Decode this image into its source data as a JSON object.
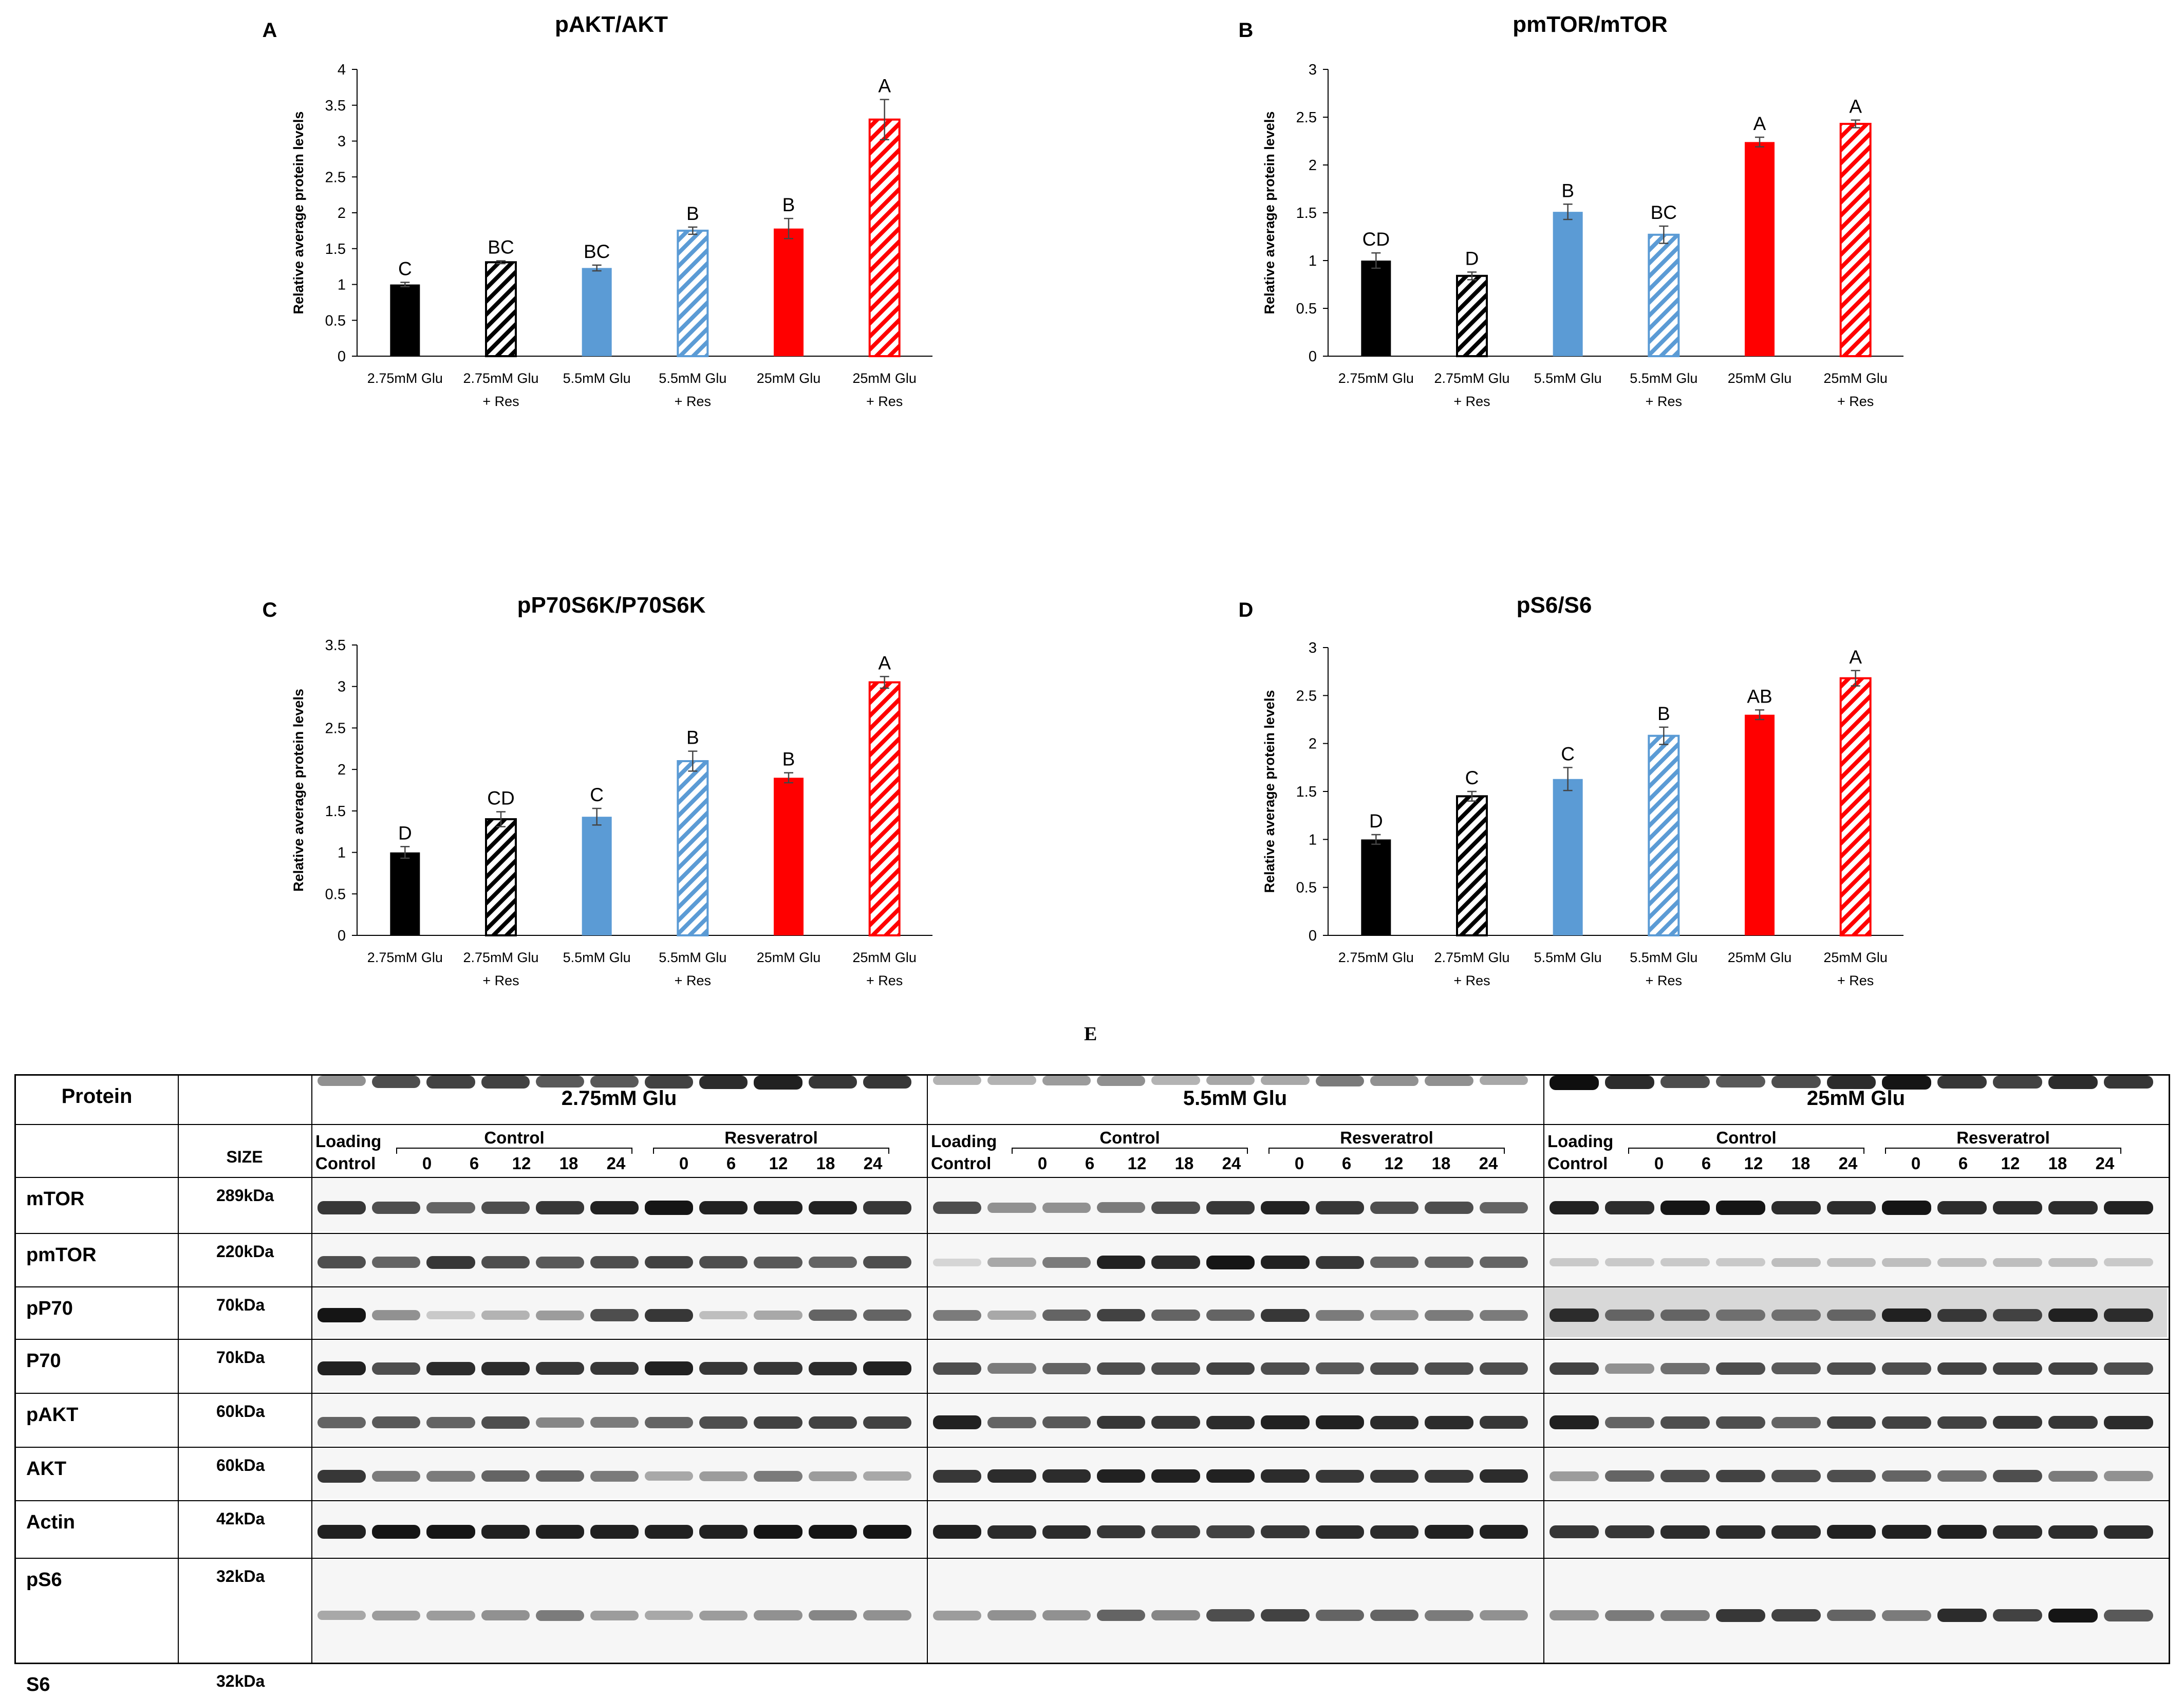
{
  "colors": {
    "black": "#000000",
    "blue": "#5B9BD5",
    "red": "#FF0000",
    "axis": "#000000"
  },
  "chart_data": [
    {
      "letter": "A",
      "type": "bar",
      "title": "pAKT/AKT",
      "ylabel": "Relative average protein levels",
      "ylim": [
        0,
        4
      ],
      "yticks": [
        "0",
        "0.5",
        "1",
        "1.5",
        "2",
        "2.5",
        "3",
        "3.5",
        "4"
      ],
      "categories": [
        [
          "2.75mM Glu",
          ""
        ],
        [
          "2.75mM Glu",
          "+ Res"
        ],
        [
          "5.5mM Glu",
          ""
        ],
        [
          "5.5mM Glu",
          "+ Res"
        ],
        [
          "25mM Glu",
          ""
        ],
        [
          "25mM Glu",
          "+ Res"
        ]
      ],
      "values": [
        1.0,
        1.31,
        1.23,
        1.75,
        1.78,
        3.3
      ],
      "errors": [
        0.03,
        0.02,
        0.04,
        0.05,
        0.14,
        0.28
      ],
      "labels": [
        "C",
        "BC",
        "BC",
        "B",
        "B",
        "A"
      ],
      "fills": [
        "black",
        "black",
        "blue",
        "blue",
        "red",
        "red"
      ],
      "hatched": [
        false,
        true,
        false,
        true,
        false,
        true
      ]
    },
    {
      "letter": "B",
      "type": "bar",
      "title": "pmTOR/mTOR",
      "ylabel": "Relative average protein levels",
      "ylim": [
        0,
        3
      ],
      "yticks": [
        "0",
        "0.5",
        "1",
        "1.5",
        "2",
        "2.5",
        "3"
      ],
      "categories": [
        [
          "2.75mM Glu",
          ""
        ],
        [
          "2.75mM Glu",
          "+ Res"
        ],
        [
          "5.5mM Glu",
          ""
        ],
        [
          "5.5mM Glu",
          "+ Res"
        ],
        [
          "25mM Glu",
          ""
        ],
        [
          "25mM Glu",
          "+ Res"
        ]
      ],
      "values": [
        1.0,
        0.84,
        1.51,
        1.27,
        2.24,
        2.43
      ],
      "errors": [
        0.08,
        0.04,
        0.08,
        0.09,
        0.05,
        0.04
      ],
      "labels": [
        "CD",
        "D",
        "B",
        "BC",
        "A",
        "A"
      ],
      "fills": [
        "black",
        "black",
        "blue",
        "blue",
        "red",
        "red"
      ],
      "hatched": [
        false,
        true,
        false,
        true,
        false,
        true
      ]
    },
    {
      "letter": "C",
      "type": "bar",
      "title": "pP70S6K/P70S6K",
      "ylabel": "Relative average protein levels",
      "ylim": [
        0,
        3.5
      ],
      "yticks": [
        "0",
        "0.5",
        "1",
        "1.5",
        "2",
        "2.5",
        "3",
        "3.5"
      ],
      "categories": [
        [
          "2.75mM Glu",
          ""
        ],
        [
          "2.75mM Glu",
          "+ Res"
        ],
        [
          "5.5mM Glu",
          ""
        ],
        [
          "5.5mM Glu",
          "+ Res"
        ],
        [
          "25mM Glu",
          ""
        ],
        [
          "25mM Glu",
          "+ Res"
        ]
      ],
      "values": [
        1.0,
        1.4,
        1.43,
        2.1,
        1.9,
        3.05
      ],
      "errors": [
        0.07,
        0.09,
        0.1,
        0.12,
        0.06,
        0.07
      ],
      "labels": [
        "D",
        "CD",
        "C",
        "B",
        "B",
        "A"
      ],
      "fills": [
        "black",
        "black",
        "blue",
        "blue",
        "red",
        "red"
      ],
      "hatched": [
        false,
        true,
        false,
        true,
        false,
        true
      ]
    },
    {
      "letter": "D",
      "type": "bar",
      "title": "pS6/S6",
      "ylabel": "Relative average protein levels",
      "ylim": [
        0,
        3
      ],
      "yticks": [
        "0",
        "0.5",
        "1",
        "1.5",
        "2",
        "2.5",
        "3"
      ],
      "categories": [
        [
          "2.75mM Glu",
          ""
        ],
        [
          "2.75mM Glu",
          "+ Res"
        ],
        [
          "5.5mM Glu",
          ""
        ],
        [
          "5.5mM Glu",
          "+ Res"
        ],
        [
          "25mM Glu",
          ""
        ],
        [
          "25mM Glu",
          "+ Res"
        ]
      ],
      "values": [
        1.0,
        1.45,
        1.63,
        2.08,
        2.3,
        2.68
      ],
      "errors": [
        0.05,
        0.05,
        0.12,
        0.09,
        0.05,
        0.08
      ],
      "labels": [
        "D",
        "C",
        "C",
        "B",
        "AB",
        "A"
      ],
      "fills": [
        "black",
        "black",
        "blue",
        "blue",
        "red",
        "red"
      ],
      "hatched": [
        false,
        true,
        false,
        true,
        false,
        true
      ]
    }
  ],
  "blot": {
    "panel_letter": "E",
    "header_protein": "Protein",
    "header_size": "SIZE",
    "groups": [
      "2.75mM Glu",
      "5.5mM Glu",
      "25mM Glu"
    ],
    "loading_control": [
      "Loading",
      "Control"
    ],
    "control_label": "Control",
    "resveratrol_label": "Resveratrol",
    "timepoints": [
      "0",
      "6",
      "12",
      "18",
      "24"
    ],
    "rows": [
      {
        "protein": "mTOR",
        "size": "289kDa"
      },
      {
        "protein": "pmTOR",
        "size": "220kDa"
      },
      {
        "protein": "pP70",
        "size": "70kDa"
      },
      {
        "protein": "P70",
        "size": "70kDa"
      },
      {
        "protein": "pAKT",
        "size": "60kDa"
      },
      {
        "protein": "AKT",
        "size": "60kDa"
      },
      {
        "protein": "Actin",
        "size": "42kDa"
      },
      {
        "protein": "pS6",
        "size": "32kDa"
      },
      {
        "protein": "S6",
        "size": "32kDa"
      }
    ]
  }
}
